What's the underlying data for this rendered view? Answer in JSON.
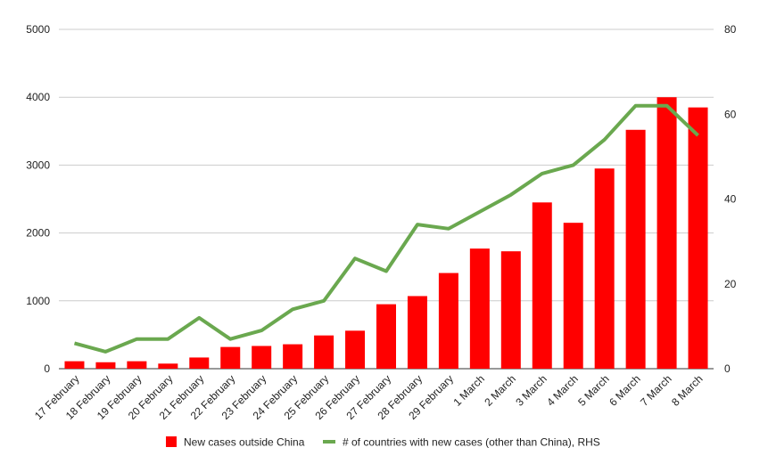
{
  "chart_data": {
    "type": "bar",
    "categories": [
      "17 February",
      "18 February",
      "19 February",
      "20 February",
      "21 February",
      "22 February",
      "23 February",
      "24 February",
      "25 February",
      "26 February",
      "27 February",
      "28 February",
      "29 February",
      "1 March",
      "2 March",
      "3 March",
      "4 March",
      "5 March",
      "6 March",
      "7 March",
      "8 March"
    ],
    "series": [
      {
        "name": "New cases outside China",
        "type": "bar",
        "axis": "left",
        "color": "#ff0000",
        "values": [
          110,
          95,
          110,
          75,
          165,
          320,
          335,
          360,
          490,
          560,
          950,
          1070,
          1410,
          1770,
          1730,
          2450,
          2150,
          2950,
          3520,
          4000,
          3850
        ]
      },
      {
        "name": "# of countries with new cases (other than China), RHS",
        "type": "line",
        "axis": "right",
        "color": "#6aa84f",
        "values": [
          6,
          4,
          7,
          7,
          12,
          7,
          9,
          14,
          16,
          26,
          23,
          34,
          33,
          37,
          41,
          46,
          48,
          54,
          62,
          62,
          55
        ]
      }
    ],
    "y_left": {
      "min": 0,
      "max": 5000,
      "ticks": [
        "0",
        "1000",
        "2000",
        "3000",
        "4000",
        "5000"
      ]
    },
    "y_right": {
      "min": 0,
      "max": 80,
      "ticks": [
        "0",
        "20",
        "40",
        "60",
        "80"
      ]
    },
    "grid": true,
    "legend": "bottom"
  }
}
